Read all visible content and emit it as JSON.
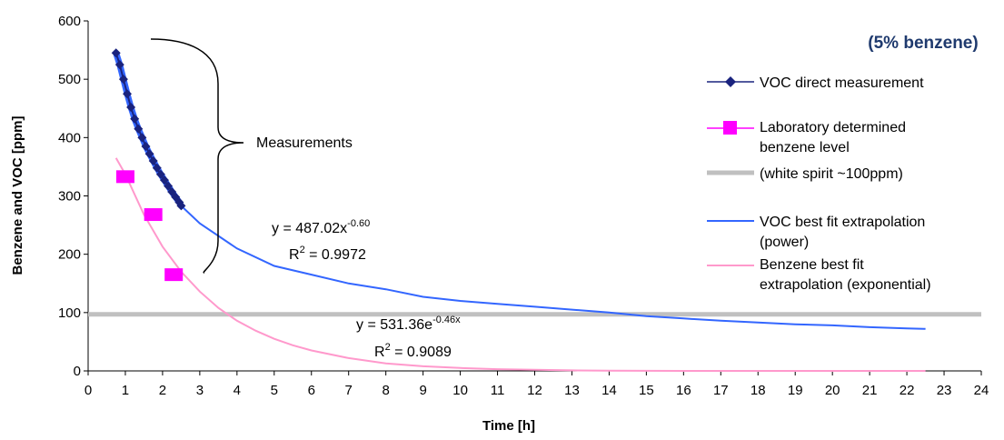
{
  "chart_data": {
    "type": "line",
    "title": "(5% benzene)",
    "xlabel": "Time [h]",
    "ylabel": "Benzene and VOC [ppm]",
    "xlim": [
      0,
      24
    ],
    "ylim": [
      0,
      600
    ],
    "x_ticks": [
      0,
      1,
      2,
      3,
      4,
      5,
      6,
      7,
      8,
      9,
      10,
      11,
      12,
      13,
      14,
      15,
      16,
      17,
      18,
      19,
      20,
      21,
      22,
      23,
      24
    ],
    "y_ticks": [
      0,
      100,
      200,
      300,
      400,
      500,
      600
    ],
    "grid": false,
    "legend_position": "right",
    "colors": {
      "voc_direct": "#1a237e",
      "lab_benzene": "#ff00ff",
      "white_spirit": "#c0c0c0",
      "voc_fit": "#3366ff",
      "benzene_fit": "#ff99cc",
      "title": "#1f3a6e"
    },
    "series": [
      {
        "name": "VOC direct measurement",
        "kind": "line-markers",
        "marker": "diamond",
        "color": "#1a237e",
        "x": [
          0.75,
          0.85,
          0.95,
          1.05,
          1.15,
          1.25,
          1.35,
          1.45,
          1.55,
          1.65,
          1.75,
          1.85,
          1.95,
          2.05,
          2.15,
          2.25,
          2.35,
          2.45,
          2.5
        ],
        "y": [
          545,
          525,
          500,
          475,
          452,
          432,
          415,
          400,
          385,
          372,
          360,
          348,
          337,
          327,
          317,
          307,
          298,
          289,
          283
        ]
      },
      {
        "name": "Laboratory determined benzene level",
        "kind": "markers",
        "marker": "square",
        "color": "#ff00ff",
        "x": [
          1.0,
          1.75,
          2.3
        ],
        "y": [
          333,
          268,
          165
        ]
      },
      {
        "name": "(white spirit ~100ppm)",
        "kind": "hline",
        "color": "#c0c0c0",
        "y": 97
      },
      {
        "name": "VOC best fit extrapolation (power)",
        "kind": "line",
        "color": "#3366ff",
        "x": [
          2.5,
          3,
          4,
          5,
          6,
          7,
          8,
          9,
          10,
          11,
          12,
          13,
          14,
          15,
          16,
          17,
          18,
          19,
          20,
          21,
          22,
          22.5
        ],
        "y": [
          283,
          253,
          210,
          180,
          165,
          150,
          140,
          127,
          120,
          115,
          110,
          105,
          100,
          94,
          90,
          86,
          83,
          80,
          78,
          75,
          73,
          72
        ]
      },
      {
        "name": "Benzene best fit extrapolation (exponential)",
        "kind": "line",
        "color": "#ff99cc",
        "x": [
          0.75,
          1,
          1.5,
          2,
          2.5,
          3,
          3.5,
          4,
          4.5,
          5,
          5.5,
          6,
          7,
          8,
          9,
          10,
          11,
          12,
          13,
          14,
          16,
          18,
          20,
          22.5
        ],
        "y": [
          365,
          337,
          268,
          213,
          170,
          136,
          108,
          86,
          69,
          55,
          44,
          35,
          22,
          13,
          8,
          5,
          3,
          2,
          1,
          0.5,
          0,
          0,
          0,
          0
        ]
      }
    ],
    "annotations": [
      {
        "id": "measurements",
        "text": "Measurements"
      },
      {
        "id": "voc_eq",
        "text": "y = 487.02x",
        "sup": "-0.60"
      },
      {
        "id": "voc_r2_pre",
        "text": "R",
        "sup": "2",
        "text2": " = 0.9972"
      },
      {
        "id": "benz_eq",
        "text": "y = 531.36e",
        "sup": "-0.46x"
      },
      {
        "id": "benz_r2",
        "text": "R",
        "sup": "2",
        "text2": " = 0.9089"
      }
    ]
  }
}
